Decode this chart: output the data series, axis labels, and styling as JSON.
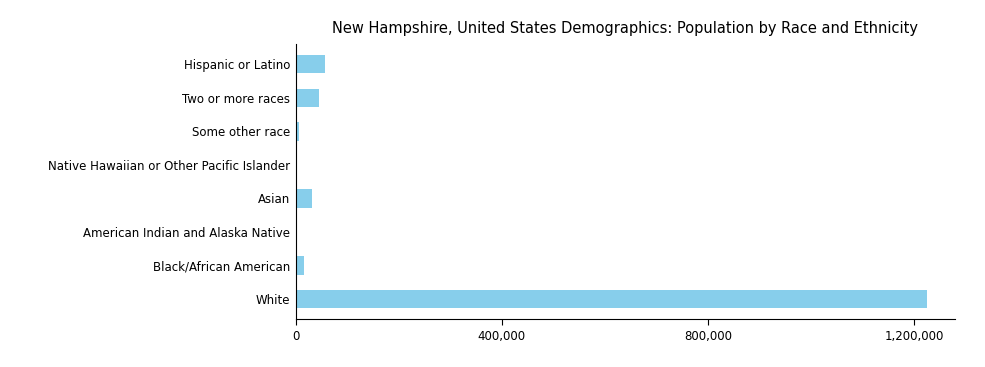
{
  "title": "New Hampshire, United States Demographics: Population by Race and Ethnicity",
  "categories": [
    "White",
    "Black/African American",
    "American Indian and Alaska Native",
    "Asian",
    "Native Hawaiian or Other Pacific Islander",
    "Some other race",
    "Two or more races",
    "Hispanic or Latino"
  ],
  "values": [
    1225000,
    16000,
    3500,
    32000,
    1200,
    7000,
    46000,
    58000
  ],
  "bar_color": "#87CEEB",
  "xlim": [
    0,
    1280000
  ],
  "xticks": [
    0,
    400000,
    800000,
    1200000
  ],
  "xtick_labels": [
    "0",
    "400,000",
    "800,000",
    "1,200,000"
  ],
  "title_fontsize": 10.5,
  "tick_fontsize": 8.5,
  "background_color": "#ffffff"
}
